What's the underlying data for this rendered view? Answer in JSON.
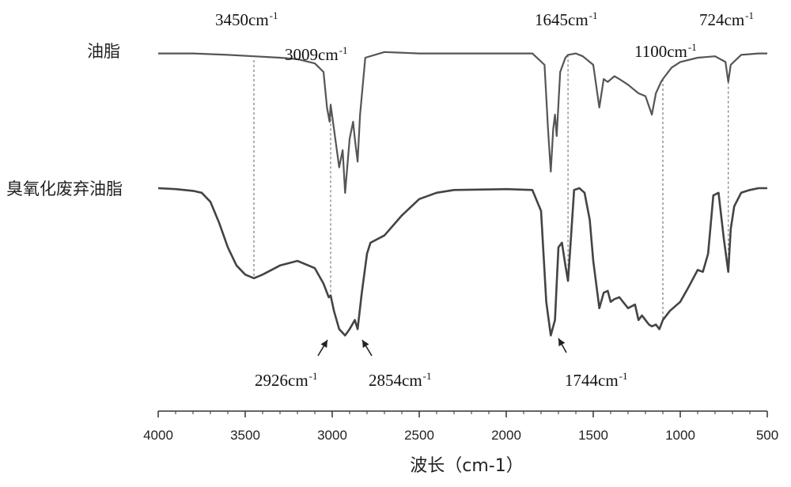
{
  "chart_data": {
    "type": "line",
    "xlabel": "波长（cm-1）",
    "xlim": [
      4000,
      500
    ],
    "x_ticks": [
      4000,
      3500,
      3000,
      2500,
      2000,
      1500,
      1000,
      500
    ],
    "grid": false,
    "series": [
      {
        "name": "油脂",
        "color": "#555555",
        "points": [
          [
            4000,
            0.02
          ],
          [
            3800,
            0.02
          ],
          [
            3600,
            0.03
          ],
          [
            3450,
            0.04
          ],
          [
            3300,
            0.05
          ],
          [
            3200,
            0.06
          ],
          [
            3100,
            0.09
          ],
          [
            3050,
            0.15
          ],
          [
            3030,
            0.4
          ],
          [
            3015,
            0.5
          ],
          [
            3009,
            0.38
          ],
          [
            2990,
            0.55
          ],
          [
            2960,
            0.82
          ],
          [
            2940,
            0.7
          ],
          [
            2926,
            1.0
          ],
          [
            2900,
            0.62
          ],
          [
            2880,
            0.5
          ],
          [
            2870,
            0.62
          ],
          [
            2854,
            0.78
          ],
          [
            2840,
            0.45
          ],
          [
            2810,
            0.05
          ],
          [
            2700,
            0.01
          ],
          [
            2500,
            0.02
          ],
          [
            2000,
            0.02
          ],
          [
            1850,
            0.02
          ],
          [
            1780,
            0.1
          ],
          [
            1760,
            0.55
          ],
          [
            1744,
            0.85
          ],
          [
            1730,
            0.55
          ],
          [
            1720,
            0.45
          ],
          [
            1710,
            0.6
          ],
          [
            1690,
            0.15
          ],
          [
            1660,
            0.05
          ],
          [
            1645,
            0.03
          ],
          [
            1600,
            0.02
          ],
          [
            1560,
            0.04
          ],
          [
            1500,
            0.1
          ],
          [
            1465,
            0.4
          ],
          [
            1440,
            0.2
          ],
          [
            1417,
            0.22
          ],
          [
            1378,
            0.18
          ],
          [
            1350,
            0.2
          ],
          [
            1300,
            0.24
          ],
          [
            1240,
            0.3
          ],
          [
            1200,
            0.32
          ],
          [
            1163,
            0.45
          ],
          [
            1140,
            0.3
          ],
          [
            1110,
            0.22
          ],
          [
            1100,
            0.2
          ],
          [
            1050,
            0.12
          ],
          [
            1000,
            0.08
          ],
          [
            900,
            0.05
          ],
          [
            800,
            0.04
          ],
          [
            740,
            0.08
          ],
          [
            724,
            0.22
          ],
          [
            710,
            0.1
          ],
          [
            650,
            0.03
          ],
          [
            550,
            0.02
          ],
          [
            500,
            0.02
          ]
        ]
      },
      {
        "name": "臭氧化废弃油脂",
        "color": "#444444",
        "points": [
          [
            4000,
            0.0
          ],
          [
            3900,
            0.01
          ],
          [
            3800,
            0.03
          ],
          [
            3750,
            0.05
          ],
          [
            3700,
            0.15
          ],
          [
            3650,
            0.38
          ],
          [
            3600,
            0.65
          ],
          [
            3550,
            0.85
          ],
          [
            3500,
            0.95
          ],
          [
            3450,
            0.99
          ],
          [
            3400,
            0.95
          ],
          [
            3300,
            0.85
          ],
          [
            3200,
            0.8
          ],
          [
            3100,
            0.88
          ],
          [
            3050,
            1.05
          ],
          [
            3020,
            1.2
          ],
          [
            3009,
            1.18
          ],
          [
            2990,
            1.35
          ],
          [
            2960,
            1.55
          ],
          [
            2926,
            1.62
          ],
          [
            2900,
            1.55
          ],
          [
            2870,
            1.45
          ],
          [
            2854,
            1.55
          ],
          [
            2830,
            1.15
          ],
          [
            2800,
            0.72
          ],
          [
            2780,
            0.6
          ],
          [
            2700,
            0.52
          ],
          [
            2600,
            0.3
          ],
          [
            2500,
            0.12
          ],
          [
            2400,
            0.05
          ],
          [
            2300,
            0.02
          ],
          [
            2000,
            0.01
          ],
          [
            1850,
            0.02
          ],
          [
            1800,
            0.25
          ],
          [
            1770,
            1.25
          ],
          [
            1744,
            1.62
          ],
          [
            1720,
            1.45
          ],
          [
            1700,
            0.65
          ],
          [
            1680,
            0.6
          ],
          [
            1660,
            0.85
          ],
          [
            1645,
            1.02
          ],
          [
            1630,
            0.6
          ],
          [
            1610,
            0.02
          ],
          [
            1580,
            0.0
          ],
          [
            1550,
            0.05
          ],
          [
            1520,
            0.35
          ],
          [
            1500,
            0.8
          ],
          [
            1465,
            1.32
          ],
          [
            1440,
            1.15
          ],
          [
            1417,
            1.13
          ],
          [
            1400,
            1.25
          ],
          [
            1378,
            1.22
          ],
          [
            1350,
            1.2
          ],
          [
            1300,
            1.32
          ],
          [
            1260,
            1.28
          ],
          [
            1240,
            1.45
          ],
          [
            1220,
            1.4
          ],
          [
            1200,
            1.45
          ],
          [
            1180,
            1.5
          ],
          [
            1163,
            1.52
          ],
          [
            1140,
            1.5
          ],
          [
            1120,
            1.55
          ],
          [
            1100,
            1.45
          ],
          [
            1060,
            1.35
          ],
          [
            1000,
            1.25
          ],
          [
            950,
            1.08
          ],
          [
            900,
            0.9
          ],
          [
            870,
            0.92
          ],
          [
            840,
            0.72
          ],
          [
            810,
            0.08
          ],
          [
            780,
            0.05
          ],
          [
            750,
            0.55
          ],
          [
            724,
            0.92
          ],
          [
            710,
            0.45
          ],
          [
            690,
            0.2
          ],
          [
            650,
            0.05
          ],
          [
            600,
            0.02
          ],
          [
            550,
            0.0
          ],
          [
            500,
            0.0
          ]
        ]
      }
    ],
    "annotations": [
      {
        "base": "3450cm",
        "sup": "-1",
        "x": 3450
      },
      {
        "base": "3009cm",
        "sup": "-1",
        "x": 3009
      },
      {
        "base": "1645cm",
        "sup": "-1",
        "x": 1645
      },
      {
        "base": "1100cm",
        "sup": "-1",
        "x": 1100
      },
      {
        "base": "724cm",
        "sup": "-1",
        "x": 724
      },
      {
        "base": "2926cm",
        "sup": "-1",
        "x": 2926
      },
      {
        "base": "2854cm",
        "sup": "-1",
        "x": 2854
      },
      {
        "base": "1744cm",
        "sup": "-1",
        "x": 1744
      }
    ]
  }
}
